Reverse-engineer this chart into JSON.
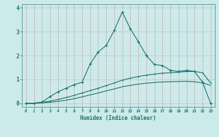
{
  "title": "",
  "xlabel": "Humidex (Indice chaleur)",
  "bg_color": "#cceaea",
  "grid_color": "#aacccc",
  "line_color": "#1a7070",
  "xlim": [
    -0.5,
    23.5
  ],
  "ylim": [
    -0.15,
    4.15
  ],
  "xticks": [
    0,
    1,
    2,
    3,
    4,
    5,
    6,
    7,
    8,
    9,
    10,
    11,
    12,
    13,
    14,
    15,
    16,
    17,
    18,
    19,
    20,
    21,
    22,
    23
  ],
  "yticks": [
    0,
    1,
    2,
    3,
    4
  ],
  "series1_x": [
    0,
    1,
    2,
    3,
    4,
    5,
    6,
    7,
    8,
    9,
    10,
    11,
    12,
    13,
    14,
    15,
    16,
    17,
    18,
    19,
    20,
    21,
    22,
    23
  ],
  "series1_y": [
    0.0,
    0.0,
    0.05,
    0.28,
    0.48,
    0.63,
    0.78,
    0.88,
    1.65,
    2.15,
    2.42,
    3.05,
    3.82,
    3.12,
    2.58,
    2.0,
    1.62,
    1.58,
    1.38,
    1.33,
    1.38,
    1.33,
    0.88,
    0.0
  ],
  "series2_x": [
    0,
    1,
    2,
    3,
    4,
    5,
    6,
    7,
    8,
    9,
    10,
    11,
    12,
    13,
    14,
    15,
    16,
    17,
    18,
    19,
    20,
    21,
    22,
    23
  ],
  "series2_y": [
    0.0,
    0.0,
    0.04,
    0.09,
    0.16,
    0.24,
    0.33,
    0.43,
    0.53,
    0.63,
    0.74,
    0.85,
    0.97,
    1.05,
    1.12,
    1.18,
    1.22,
    1.26,
    1.28,
    1.3,
    1.33,
    1.33,
    1.28,
    0.85
  ],
  "series3_x": [
    0,
    1,
    2,
    3,
    4,
    5,
    6,
    7,
    8,
    9,
    10,
    11,
    12,
    13,
    14,
    15,
    16,
    17,
    18,
    19,
    20,
    21,
    22,
    23
  ],
  "series3_y": [
    0.0,
    0.0,
    0.02,
    0.04,
    0.08,
    0.13,
    0.19,
    0.27,
    0.35,
    0.43,
    0.52,
    0.6,
    0.69,
    0.75,
    0.8,
    0.84,
    0.87,
    0.89,
    0.9,
    0.91,
    0.92,
    0.9,
    0.85,
    0.75
  ]
}
